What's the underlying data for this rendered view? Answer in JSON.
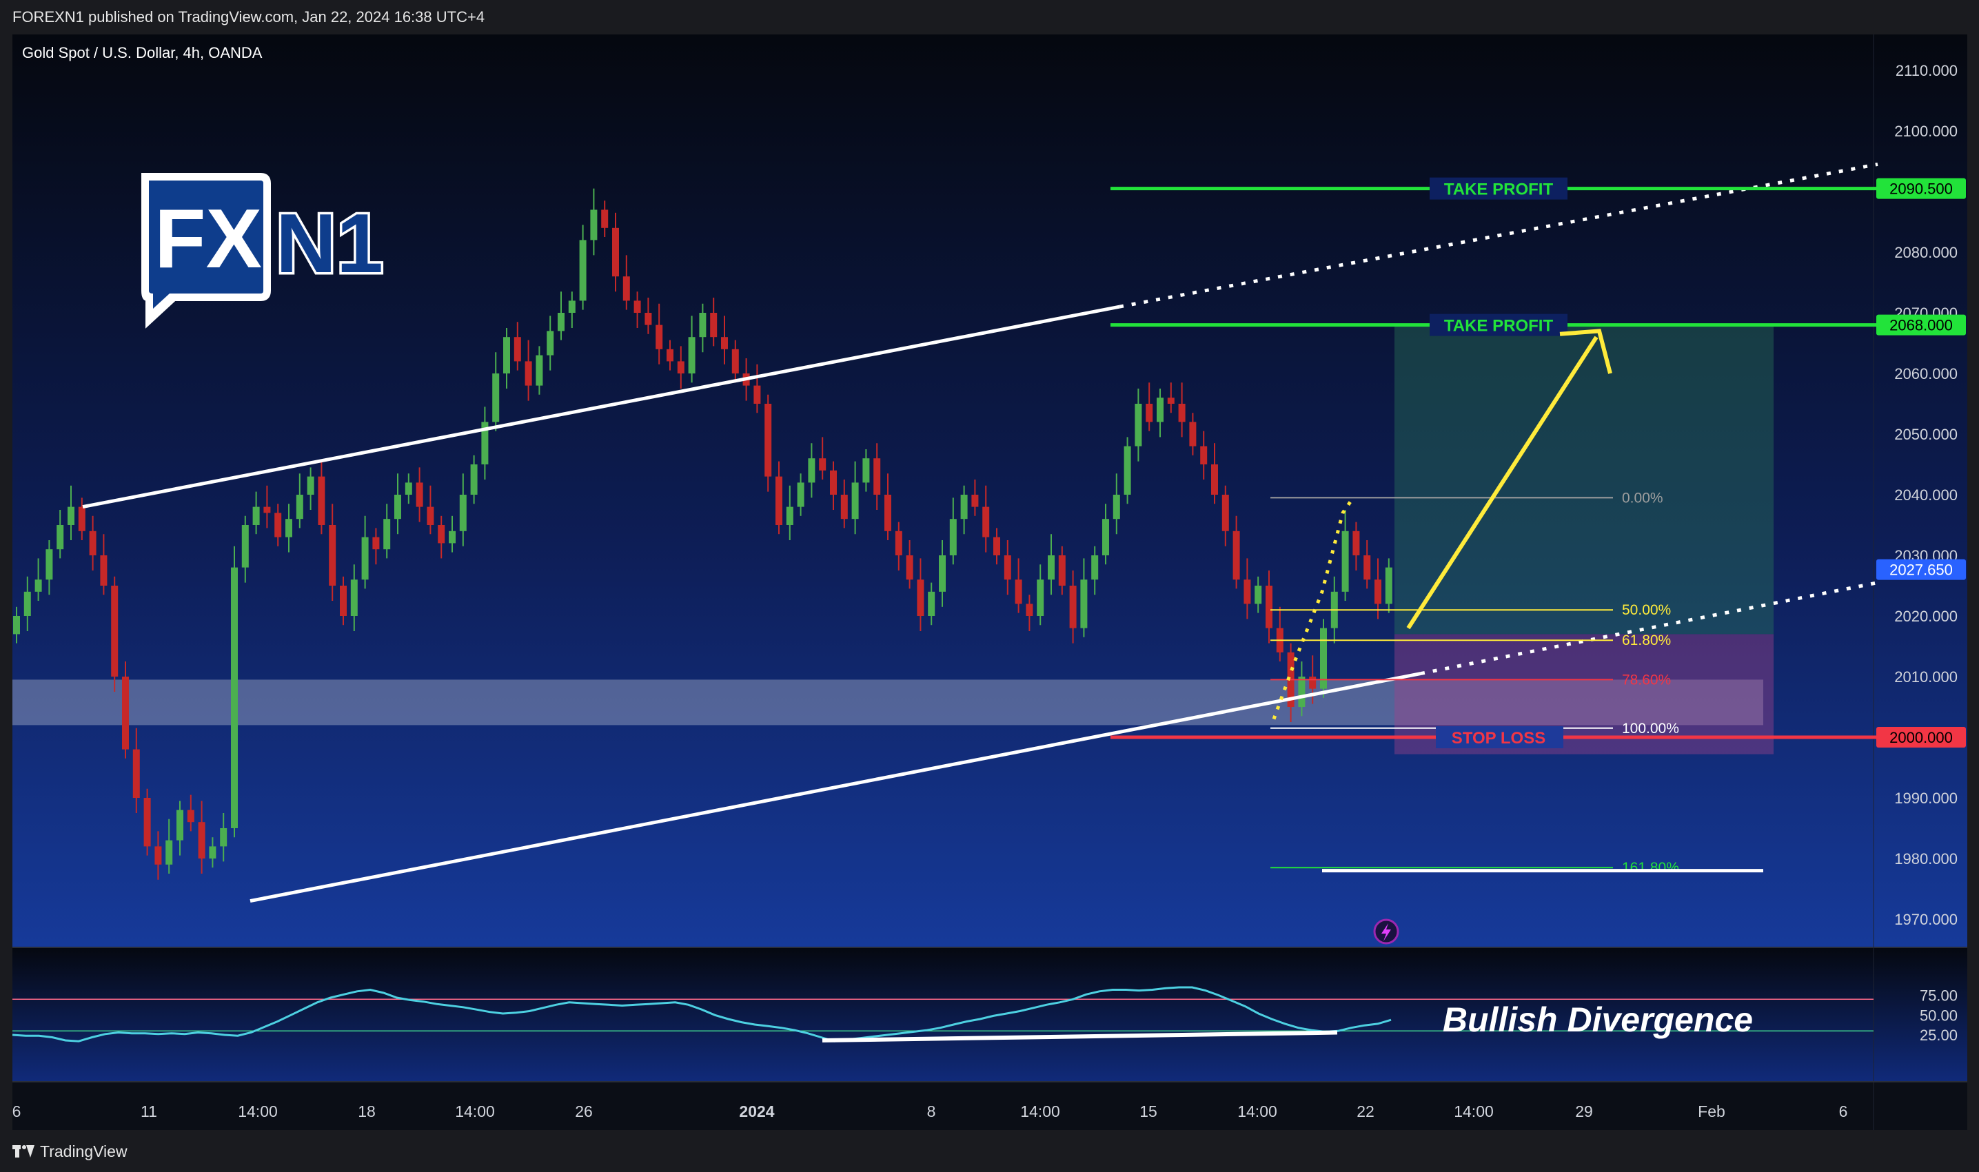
{
  "header": {
    "publisher": "FOREXN1 published on TradingView.com, Jan 22, 2024 16:38 UTC+4",
    "symbol_title": "Gold Spot / U.S. Dollar, 4h, OANDA"
  },
  "footer": {
    "brand": "TradingView"
  },
  "logo": {
    "fx": "FX",
    "n1": "N1"
  },
  "colors": {
    "up": "#4caf50",
    "down": "#c62828",
    "take_profit": "#22e33a",
    "stop_loss": "#f23645",
    "price_tag": "#2962ff",
    "rsi": "#4dd0e1",
    "target_arrow": "#ffeb3b",
    "fib_yellow": "#ffeb3b",
    "fib_red": "#f23645"
  },
  "chart_data": {
    "type": "candlestick",
    "y_axis": {
      "range": [
        1965,
        2115
      ],
      "ticks": [
        "2110.000",
        "2100.000",
        "2090.000",
        "2080.000",
        "2070.000",
        "2060.000",
        "2050.000",
        "2040.000",
        "2030.000",
        "2020.000",
        "2010.000",
        "2000.000",
        "1990.000",
        "1980.000",
        "1970.000"
      ]
    },
    "x_axis": {
      "tick_labels": [
        "6",
        "11",
        "14:00",
        "18",
        "14:00",
        "26",
        "2024",
        "8",
        "14:00",
        "15",
        "14:00",
        "22",
        "14:00",
        "29",
        "Feb",
        "6"
      ]
    },
    "last_price": "2027.650",
    "ohlc_closes_approx": [
      2020,
      2024,
      2026,
      2031,
      2035,
      2038,
      2034,
      2030,
      2025,
      2010,
      1998,
      1990,
      1982,
      1979,
      1983,
      1988,
      1986,
      1980,
      1982,
      1985,
      2028,
      2035,
      2038,
      2037,
      2033,
      2036,
      2040,
      2043,
      2035,
      2025,
      2020,
      2026,
      2033,
      2031,
      2036,
      2040,
      2042,
      2038,
      2035,
      2032,
      2034,
      2040,
      2045,
      2052,
      2060,
      2066,
      2062,
      2058,
      2063,
      2067,
      2070,
      2072,
      2082,
      2087,
      2084,
      2076,
      2072,
      2070,
      2068,
      2064,
      2062,
      2060,
      2066,
      2070,
      2066,
      2064,
      2060,
      2058,
      2055,
      2043,
      2035,
      2038,
      2042,
      2046,
      2044,
      2040,
      2036,
      2042,
      2046,
      2040,
      2034,
      2030,
      2026,
      2020,
      2024,
      2030,
      2036,
      2040,
      2038,
      2033,
      2030,
      2026,
      2022,
      2020,
      2026,
      2030,
      2025,
      2018,
      2026,
      2030,
      2036,
      2040,
      2048,
      2055,
      2052,
      2056,
      2055,
      2052,
      2048,
      2045,
      2040,
      2034,
      2026,
      2022,
      2025,
      2018,
      2014,
      2005,
      2010,
      2008,
      2018,
      2024,
      2034,
      2030,
      2026,
      2022,
      2028
    ],
    "annotations": {
      "take_profit_1": {
        "label": "TAKE PROFIT",
        "price": "2090.500"
      },
      "take_profit_2": {
        "label": "TAKE PROFIT",
        "price": "2068.000"
      },
      "stop_loss": {
        "label": "STOP LOSS",
        "price": "2000.000"
      },
      "fib_levels": [
        {
          "label": "0.00%",
          "price": 2039.5
        },
        {
          "label": "50.00%",
          "price": 2021
        },
        {
          "label": "61.80%",
          "price": 2016
        },
        {
          "label": "78.60%",
          "price": 2009.5
        },
        {
          "label": "100.00%",
          "price": 2001.5
        },
        {
          "label": "161.80%",
          "price": 1978.5
        }
      ],
      "support_zone": [
        2002,
        2009.5
      ]
    },
    "rsi": {
      "ticks": [
        "75.00",
        "50.00",
        "25.00"
      ],
      "upper_band": 70,
      "lower_band": 30,
      "range": [
        10,
        90
      ],
      "values": [
        25,
        24,
        24,
        22,
        18,
        17,
        22,
        26,
        28,
        27,
        27,
        26,
        27,
        26,
        28,
        27,
        25,
        24,
        28,
        35,
        42,
        50,
        58,
        66,
        72,
        76,
        80,
        82,
        78,
        72,
        69,
        67,
        64,
        62,
        60,
        57,
        54,
        52,
        53,
        55,
        59,
        63,
        66,
        65,
        64,
        63,
        62,
        63,
        64,
        65,
        66,
        63,
        57,
        50,
        45,
        41,
        38,
        36,
        34,
        31,
        27,
        22,
        17,
        19,
        21,
        23,
        25,
        27,
        29,
        31,
        34,
        38,
        42,
        45,
        49,
        52,
        55,
        59,
        63,
        66,
        70,
        76,
        80,
        82,
        82,
        81,
        82,
        84,
        85,
        85,
        81,
        75,
        68,
        61,
        52,
        45,
        39,
        34,
        31,
        29,
        30,
        34,
        37,
        39,
        44
      ],
      "annotation": "Bullish Divergence"
    }
  }
}
